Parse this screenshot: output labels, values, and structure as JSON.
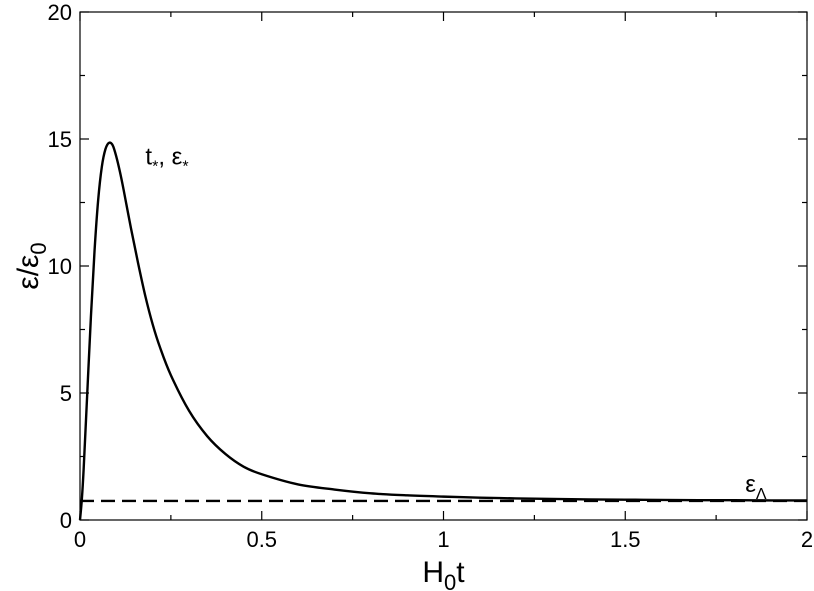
{
  "chart_data": {
    "type": "line",
    "xlabel": {
      "main": "H",
      "sub": "0",
      "tail": "t"
    },
    "ylabel": {
      "main": "ε/ε",
      "sub": "0"
    },
    "xlim": [
      0,
      2
    ],
    "ylim": [
      0,
      20
    ],
    "x_ticks": [
      0,
      0.5,
      1,
      1.5,
      2
    ],
    "x_tick_labels": [
      "0",
      "0.5",
      "1",
      "1.5",
      "2"
    ],
    "y_ticks": [
      0,
      5,
      10,
      15,
      20
    ],
    "y_tick_labels": [
      "0",
      "5",
      "10",
      "15",
      "20"
    ],
    "grid": false,
    "series": [
      {
        "style": "solid",
        "color": "#000000",
        "x": [
          0,
          0.005,
          0.01,
          0.02,
          0.03,
          0.04,
          0.05,
          0.06,
          0.07,
          0.08,
          0.09,
          0.1,
          0.11,
          0.12,
          0.14,
          0.16,
          0.18,
          0.2,
          0.22,
          0.25,
          0.3,
          0.35,
          0.4,
          0.45,
          0.5,
          0.6,
          0.7,
          0.8,
          0.9,
          1.0,
          1.1,
          1.2,
          1.3,
          1.4,
          1.5,
          1.6,
          1.7,
          1.8,
          1.9,
          2.0
        ],
        "y": [
          0,
          0.8,
          2.0,
          5.0,
          8.0,
          10.6,
          12.6,
          13.9,
          14.6,
          14.85,
          14.75,
          14.3,
          13.7,
          13.0,
          11.5,
          10.1,
          8.8,
          7.7,
          6.8,
          5.7,
          4.3,
          3.3,
          2.6,
          2.1,
          1.8,
          1.4,
          1.2,
          1.05,
          0.97,
          0.92,
          0.88,
          0.85,
          0.83,
          0.81,
          0.8,
          0.79,
          0.78,
          0.78,
          0.77,
          0.77
        ]
      },
      {
        "style": "dashed",
        "color": "#000000",
        "x": [
          0,
          2
        ],
        "y": [
          0.75,
          0.75
        ]
      }
    ],
    "annotations": [
      {
        "x": 0.18,
        "y": 14.0,
        "parts": [
          {
            "text": "t"
          },
          {
            "text": "*",
            "sub": true
          },
          {
            "text": ", ε"
          },
          {
            "text": "*",
            "sub": true
          }
        ]
      },
      {
        "x": 1.83,
        "y": 1.1,
        "parts": [
          {
            "text": "ε"
          },
          {
            "text": "Λ",
            "sub": true
          }
        ]
      }
    ]
  }
}
